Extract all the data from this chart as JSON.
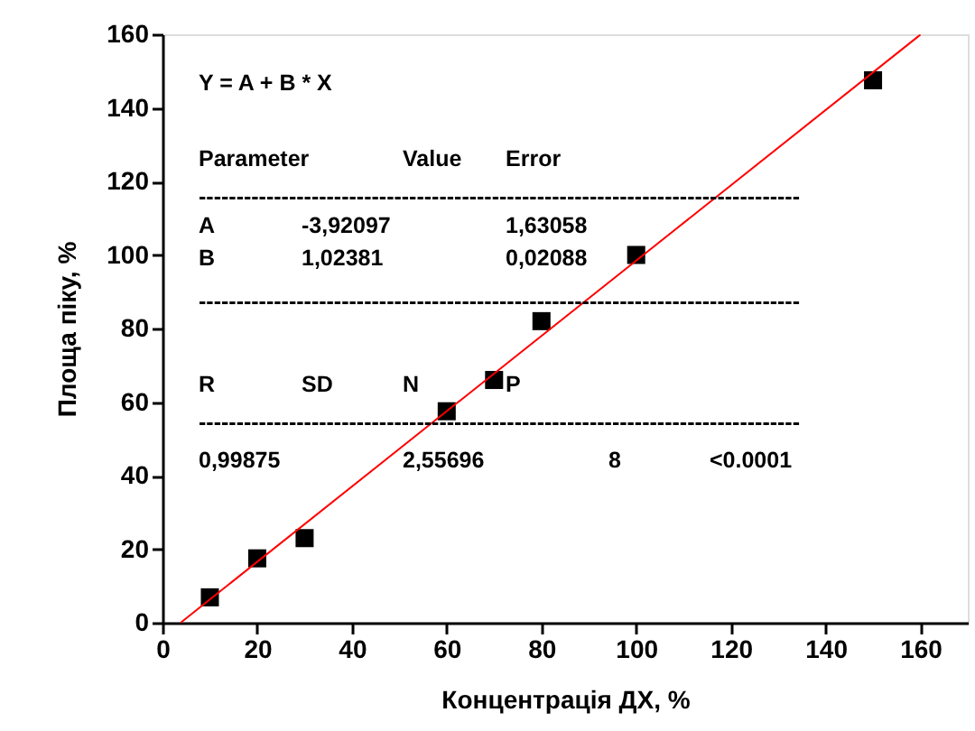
{
  "chart_data": {
    "type": "scatter",
    "xlabel": "Концентрація ДХ, %",
    "ylabel": "Площа піку, %",
    "xlim": [
      0,
      170
    ],
    "ylim": [
      0,
      160
    ],
    "xticks": [
      0,
      20,
      40,
      60,
      80,
      100,
      120,
      140,
      160
    ],
    "yticks": [
      0,
      20,
      40,
      60,
      80,
      100,
      120,
      140,
      160
    ],
    "grid": false,
    "series": [
      {
        "type": "scatter",
        "marker": "square",
        "color": "#000000",
        "x": [
          10,
          20,
          30,
          60,
          70,
          80,
          100,
          150
        ],
        "values": [
          6.9,
          17.5,
          23,
          57.5,
          66,
          82,
          100,
          147.5
        ]
      },
      {
        "type": "line",
        "color": "#ff0000",
        "line_style": "solid",
        "x": [
          3.83,
          160
        ],
        "values": [
          0,
          159.9
        ]
      }
    ],
    "annotations": [
      "Y = A + B * X",
      "Parameter",
      "Value",
      "Error",
      "--------------------------------------------------------------------------------",
      "A",
      "-3,92097",
      "1,63058",
      "B",
      "1,02381",
      "0,02088",
      "--------------------------------------------------------------------------------",
      "R",
      "SD",
      "N",
      "P",
      "--------------------------------------------------------------------------------",
      "0,99875",
      "2,55696",
      "8",
      "<0.0001"
    ]
  }
}
